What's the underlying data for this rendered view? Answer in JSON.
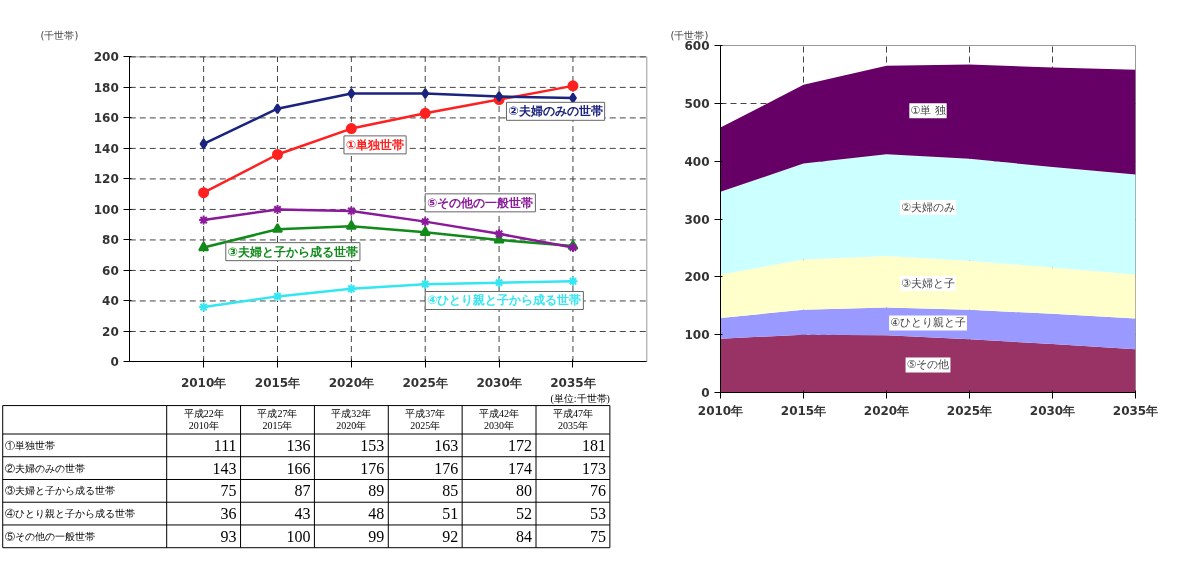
{
  "chart_data": [
    {
      "type": "line",
      "categories": [
        "2010年",
        "2015年",
        "2020年",
        "2025年",
        "2030年",
        "2035年"
      ],
      "ylim": [
        0,
        200
      ],
      "yticks": [
        0,
        20,
        40,
        60,
        80,
        100,
        120,
        140,
        160,
        180,
        200
      ],
      "grid": true,
      "line_style": "solid",
      "data_labels": true,
      "annotations": [
        "(千世帯)",
        "(単位:千世帯)",
        "平成22年\n2010年",
        "平成27年\n2015年",
        "平成32年\n2020年",
        "平成37年\n2025年",
        "平成42年\n2030年",
        "平成47年\n2035年"
      ],
      "series": [
        {
          "name": "①単独世帯",
          "color": "#ff2020",
          "marker": "circle",
          "values": [
            111,
            136,
            153,
            163,
            172,
            181
          ]
        },
        {
          "name": "②夫婦のみの世帯",
          "color": "#1a237e",
          "marker": "diamond",
          "values": [
            143,
            166,
            176,
            176,
            174,
            173
          ]
        },
        {
          "name": "③夫婦と子から成る世帯",
          "color": "#118a1a",
          "marker": "triangle",
          "values": [
            75,
            87,
            89,
            85,
            80,
            76
          ]
        },
        {
          "name": "④ひとり親と子から成る世帯",
          "color": "#33e6f2",
          "marker": "cross",
          "values": [
            36,
            43,
            48,
            51,
            52,
            53
          ]
        },
        {
          "name": "⑤その他の一般世帯",
          "color": "#8a1a9a",
          "marker": "cross",
          "values": [
            93,
            100,
            99,
            92,
            84,
            75
          ]
        }
      ]
    },
    {
      "type": "area",
      "stacked": true,
      "categories": [
        "2010年",
        "2015年",
        "2020年",
        "2025年",
        "2030年",
        "2035年"
      ],
      "ylim": [
        0,
        600
      ],
      "yticks": [
        0,
        100,
        200,
        300,
        400,
        500,
        600
      ],
      "grid": true,
      "annotations": [
        "(千世帯)"
      ],
      "series": [
        {
          "name": "⑤その他",
          "color": "#993366",
          "values": [
            93,
            100,
            99,
            92,
            84,
            75
          ]
        },
        {
          "name": "④ひとり親と子",
          "color": "#9999ff",
          "values": [
            36,
            43,
            48,
            51,
            52,
            53
          ]
        },
        {
          "name": "③夫婦と子",
          "color": "#ffffcc",
          "values": [
            75,
            87,
            89,
            85,
            80,
            76
          ]
        },
        {
          "name": "②夫婦のみ",
          "color": "#ccffff",
          "values": [
            143,
            166,
            176,
            176,
            174,
            173
          ]
        },
        {
          "name": "①単 独",
          "color": "#660066",
          "values": [
            111,
            136,
            153,
            163,
            172,
            181
          ]
        }
      ]
    }
  ]
}
